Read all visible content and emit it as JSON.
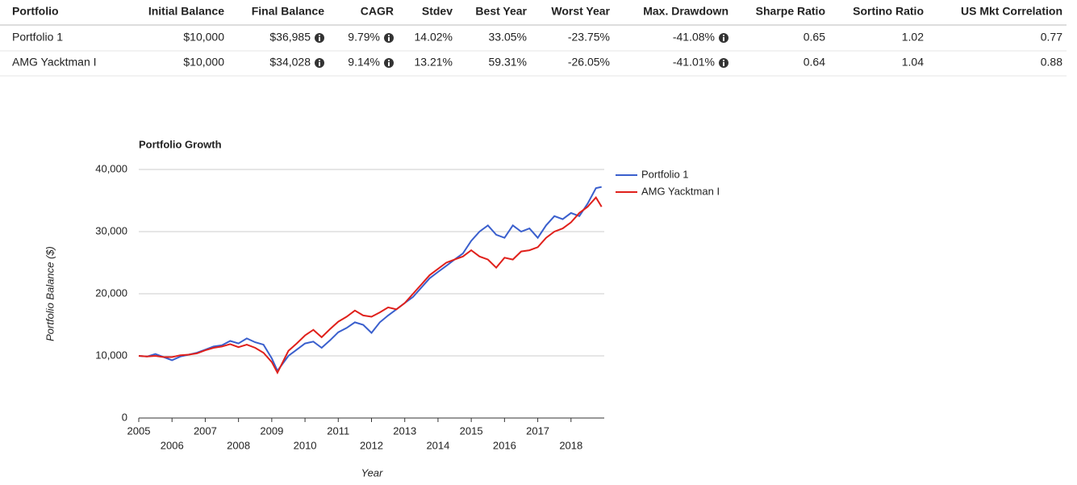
{
  "table": {
    "columns": [
      "Portfolio",
      "Initial Balance",
      "Final Balance",
      "CAGR",
      "Stdev",
      "Best Year",
      "Worst Year",
      "Max. Drawdown",
      "Sharpe Ratio",
      "Sortino Ratio",
      "US Mkt Correlation"
    ],
    "rows": [
      [
        "Portfolio 1",
        "$10,000",
        "$36,985",
        "9.79%",
        "14.02%",
        "33.05%",
        "-23.75%",
        "-41.08%",
        "0.65",
        "1.02",
        "0.77"
      ],
      [
        "AMG Yacktman I",
        "$10,000",
        "$34,028",
        "9.14%",
        "13.21%",
        "59.31%",
        "-26.05%",
        "-41.01%",
        "0.64",
        "1.04",
        "0.88"
      ]
    ]
  },
  "chart_data": {
    "type": "line",
    "title": "Portfolio Growth",
    "xlabel": "Year",
    "ylabel": "Portfolio Balance ($)",
    "x": [
      2005,
      2005.25,
      2005.5,
      2005.75,
      2006,
      2006.25,
      2006.5,
      2006.75,
      2007,
      2007.25,
      2007.5,
      2007.75,
      2008,
      2008.25,
      2008.5,
      2008.75,
      2009,
      2009.17,
      2009.5,
      2009.75,
      2010,
      2010.25,
      2010.5,
      2010.75,
      2011,
      2011.25,
      2011.5,
      2011.75,
      2012,
      2012.25,
      2012.5,
      2012.75,
      2013,
      2013.25,
      2013.5,
      2013.75,
      2014,
      2014.25,
      2014.5,
      2014.75,
      2015,
      2015.25,
      2015.5,
      2015.75,
      2016,
      2016.25,
      2016.5,
      2016.75,
      2017,
      2017.25,
      2017.5,
      2017.75,
      2018,
      2018.25,
      2018.5,
      2018.75,
      2018.92
    ],
    "series": [
      {
        "name": "Portfolio 1",
        "color": "#3a5fcd",
        "values": [
          10000,
          9900,
          10300,
          9800,
          9300,
          9900,
          10200,
          10500,
          11000,
          11500,
          11700,
          12400,
          12000,
          12800,
          12200,
          11800,
          9600,
          7600,
          10000,
          11000,
          12000,
          12300,
          11300,
          12500,
          13800,
          14500,
          15400,
          15000,
          13700,
          15400,
          16500,
          17500,
          18500,
          19500,
          21000,
          22500,
          23500,
          24500,
          25500,
          26500,
          28500,
          30000,
          31000,
          29500,
          29000,
          31000,
          30000,
          30500,
          29000,
          31000,
          32500,
          32000,
          33000,
          32500,
          34500,
          37000,
          37200
        ]
      },
      {
        "name": "AMG Yacktman I",
        "color": "#e0201b",
        "values": [
          10000,
          9900,
          10000,
          9800,
          9800,
          10100,
          10200,
          10400,
          10900,
          11300,
          11500,
          11900,
          11400,
          11800,
          11300,
          10500,
          9000,
          7300,
          10800,
          12000,
          13300,
          14200,
          13000,
          14300,
          15500,
          16300,
          17300,
          16500,
          16300,
          17000,
          17800,
          17500,
          18500,
          20000,
          21500,
          23000,
          24000,
          25000,
          25500,
          26000,
          27000,
          26000,
          25500,
          24200,
          25800,
          25500,
          26800,
          27000,
          27500,
          29000,
          30000,
          30500,
          31500,
          33000,
          34000,
          35500,
          34000
        ]
      }
    ],
    "xlim": [
      2005,
      2019
    ],
    "xticks": [
      2005,
      2006,
      2007,
      2008,
      2009,
      2010,
      2011,
      2012,
      2013,
      2014,
      2015,
      2016,
      2017,
      2018
    ],
    "ylim": [
      0,
      40000
    ],
    "yticks": [
      0,
      {
        "value": 10000,
        "label": "10,000"
      },
      {
        "value": 20000,
        "label": "20,000"
      },
      {
        "value": 30000,
        "label": "30,000"
      },
      {
        "value": 40000,
        "label": "40,000"
      }
    ],
    "grid": true,
    "legend": "right"
  }
}
